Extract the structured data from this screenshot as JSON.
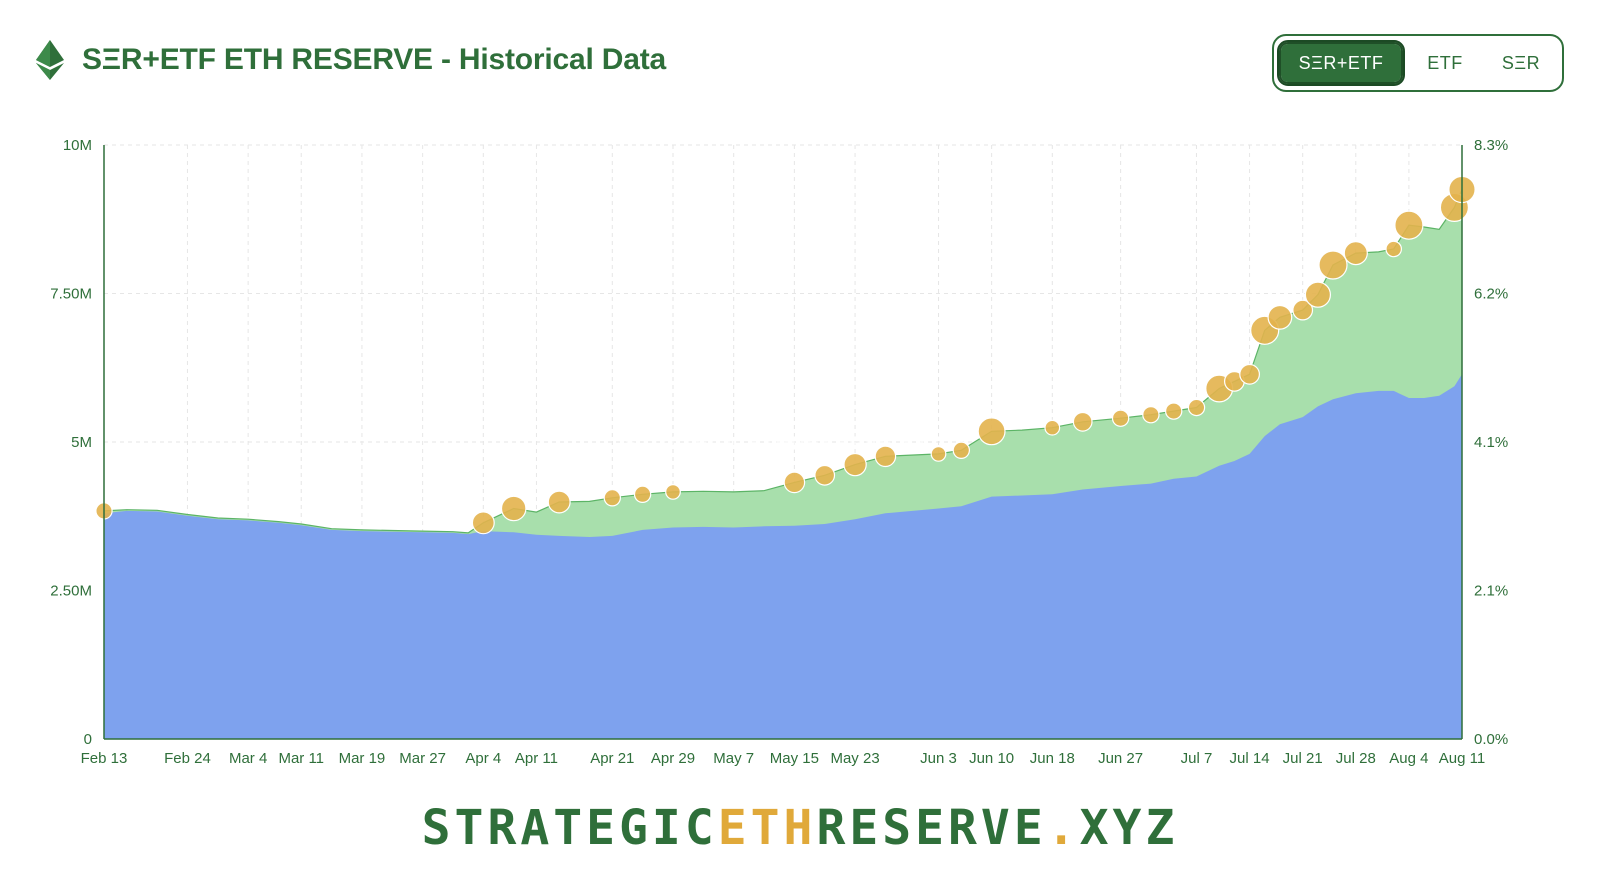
{
  "header": {
    "title": "SΞR+ETF ETH RESERVE - Historical Data",
    "logo_icon": "ethereum-diamond-icon"
  },
  "toggle": {
    "options": [
      "SΞR+ETF",
      "ETF",
      "SΞR"
    ],
    "selected": "SΞR+ETF"
  },
  "colors": {
    "accent": "#2f6f3a",
    "etf_area": "#7ea2ee",
    "ser_area": "#a8dfac",
    "ser_line": "#5cb466",
    "bubble": "#e3b34c"
  },
  "watermark": "STRATEGICETHRESERVE.XYZ",
  "footer": {
    "part1": "STRATEGIC",
    "part2": "ETH",
    "part3": "RESERVE",
    "part4": ".",
    "part5": "XYZ"
  },
  "chart_data": {
    "type": "area",
    "grid": true,
    "legend": "none",
    "x_tick_labels": [
      "Feb 13",
      "Feb 24",
      "Mar 4",
      "Mar 11",
      "Mar 19",
      "Mar 27",
      "Apr 4",
      "Apr 11",
      "Apr 21",
      "Apr 29",
      "May 7",
      "May 15",
      "May 23",
      "Jun 3",
      "Jun 10",
      "Jun 18",
      "Jun 27",
      "Jul 7",
      "Jul 14",
      "Jul 21",
      "Jul 28",
      "Aug 4",
      "Aug 11"
    ],
    "y_left": {
      "ticks": [
        "0",
        "2.50M",
        "5M",
        "7.50M",
        "10M"
      ],
      "ylim": [
        0,
        10000000
      ]
    },
    "y_right": {
      "ticks": [
        "0.0%",
        "2.1%",
        "4.1%",
        "6.2%",
        "8.3%"
      ],
      "ylim": [
        0,
        8.3
      ]
    },
    "x": [
      "Feb 13",
      "Feb 16",
      "Feb 20",
      "Feb 24",
      "Feb 28",
      "Mar 4",
      "Mar 8",
      "Mar 11",
      "Mar 15",
      "Mar 19",
      "Mar 23",
      "Mar 27",
      "Mar 31",
      "Apr 2",
      "Apr 4",
      "Apr 8",
      "Apr 11",
      "Apr 14",
      "Apr 18",
      "Apr 21",
      "Apr 25",
      "Apr 29",
      "May 3",
      "May 7",
      "May 11",
      "May 15",
      "May 19",
      "May 23",
      "May 27",
      "Jun 3",
      "Jun 6",
      "Jun 10",
      "Jun 14",
      "Jun 18",
      "Jun 22",
      "Jun 27",
      "Jul 1",
      "Jul 4",
      "Jul 7",
      "Jul 10",
      "Jul 12",
      "Jul 14",
      "Jul 16",
      "Jul 18",
      "Jul 21",
      "Jul 23",
      "Jul 25",
      "Jul 28",
      "Jul 31",
      "Aug 2",
      "Aug 4",
      "Aug 6",
      "Aug 8",
      "Aug 10",
      "Aug 11"
    ],
    "series": [
      {
        "name": "ETF",
        "values": [
          3800000,
          3840000,
          3830000,
          3760000,
          3700000,
          3680000,
          3640000,
          3600000,
          3520000,
          3500000,
          3490000,
          3480000,
          3470000,
          3450000,
          3500000,
          3480000,
          3440000,
          3420000,
          3400000,
          3420000,
          3520000,
          3560000,
          3570000,
          3560000,
          3580000,
          3590000,
          3620000,
          3700000,
          3800000,
          3880000,
          3920000,
          4080000,
          4100000,
          4120000,
          4200000,
          4260000,
          4300000,
          4380000,
          4420000,
          4600000,
          4680000,
          4800000,
          5100000,
          5300000,
          5420000,
          5600000,
          5720000,
          5820000,
          5860000,
          5860000,
          5740000,
          5740000,
          5780000,
          5940000,
          6140000
        ]
      },
      {
        "name": "SΞR+ETF",
        "values": [
          3840000,
          3860000,
          3850000,
          3780000,
          3720000,
          3700000,
          3660000,
          3620000,
          3540000,
          3520000,
          3510000,
          3500000,
          3490000,
          3470000,
          3640000,
          3880000,
          3820000,
          3990000,
          4000000,
          4060000,
          4120000,
          4160000,
          4170000,
          4160000,
          4180000,
          4320000,
          4440000,
          4620000,
          4760000,
          4800000,
          4860000,
          5180000,
          5200000,
          5240000,
          5340000,
          5400000,
          5460000,
          5520000,
          5580000,
          5900000,
          6020000,
          6140000,
          6880000,
          7100000,
          7220000,
          7480000,
          7980000,
          8180000,
          8200000,
          8250000,
          8650000,
          8620000,
          8580000,
          8950000,
          9250000
        ]
      }
    ]
  }
}
